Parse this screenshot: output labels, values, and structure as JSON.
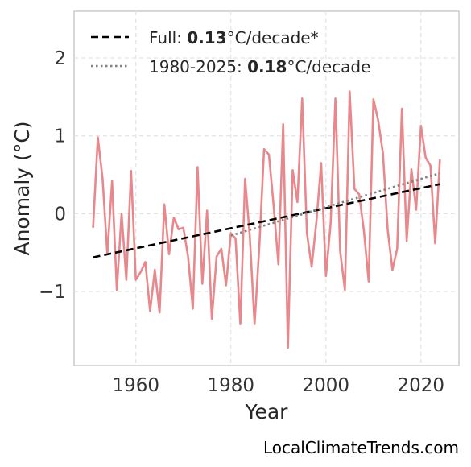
{
  "chart_data": {
    "type": "line",
    "xlabel": "Year",
    "ylabel": "Anomaly (°C)",
    "xlim": [
      1947,
      2028
    ],
    "ylim": [
      -1.95,
      2.6
    ],
    "xticks": [
      1960,
      1980,
      2000,
      2020
    ],
    "yticks": [
      -1,
      0,
      1,
      2
    ],
    "ytick_labels": [
      "−1",
      "0",
      "1",
      "2"
    ],
    "grid": true,
    "legend_position": "top-left",
    "series": [
      {
        "style": "solid",
        "color": "#e8888c",
        "x": [
          1951,
          1952,
          1953,
          1954,
          1955,
          1956,
          1957,
          1958,
          1959,
          1960,
          1961,
          1962,
          1963,
          1964,
          1965,
          1966,
          1967,
          1968,
          1969,
          1970,
          1971,
          1972,
          1973,
          1974,
          1975,
          1976,
          1977,
          1978,
          1979,
          1980,
          1981,
          1982,
          1983,
          1984,
          1985,
          1986,
          1987,
          1988,
          1989,
          1990,
          1991,
          1992,
          1993,
          1994,
          1995,
          1996,
          1997,
          1998,
          1999,
          2000,
          2001,
          2002,
          2003,
          2004,
          2005,
          2006,
          2007,
          2008,
          2009,
          2010,
          2011,
          2012,
          2013,
          2014,
          2015,
          2016,
          2017,
          2018,
          2019,
          2020,
          2021,
          2022,
          2023,
          2024
        ],
        "y": [
          -0.18,
          0.98,
          0.45,
          -0.52,
          0.42,
          -0.98,
          0.0,
          -0.85,
          0.55,
          -0.85,
          -0.75,
          -0.62,
          -1.25,
          -0.72,
          -1.27,
          0.12,
          -0.52,
          -0.05,
          -0.2,
          -0.18,
          -0.55,
          -1.22,
          0.6,
          -0.9,
          0.04,
          -1.35,
          -0.55,
          -0.45,
          -0.92,
          -0.25,
          -0.32,
          -1.42,
          0.45,
          -0.3,
          -1.42,
          -0.42,
          0.83,
          0.76,
          0.1,
          -0.65,
          1.15,
          -1.72,
          0.56,
          0.15,
          1.48,
          -0.25,
          -0.68,
          -0.1,
          0.65,
          -0.8,
          -0.12,
          1.48,
          -0.48,
          -0.98,
          1.57,
          0.32,
          0.25,
          -0.22,
          -0.87,
          1.47,
          1.2,
          0.78,
          -0.2,
          -0.72,
          -0.45,
          1.35,
          -0.35,
          0.57,
          0.05,
          1.13,
          0.72,
          0.62,
          -0.38,
          0.7
        ]
      },
      {
        "name": "Full: 0.13°C/decade*",
        "style": "dashed",
        "color": "#000000",
        "x": [
          1951,
          2024
        ],
        "y": [
          -0.56,
          0.38
        ]
      },
      {
        "name": "1980-2025: 0.18°C/decade",
        "style": "dotted",
        "color": "#808080",
        "x": [
          1980,
          2024
        ],
        "y": [
          -0.28,
          0.52
        ]
      }
    ],
    "legend": [
      {
        "prefix": "Full: ",
        "bold": "0.13",
        "suffix": "°C/decade*",
        "style": "dashed",
        "color": "#000000"
      },
      {
        "prefix": "1980-2025: ",
        "bold": "0.18",
        "suffix": "°C/decade",
        "style": "dotted",
        "color": "#808080"
      }
    ]
  },
  "watermark": "LocalClimateTrends.com"
}
